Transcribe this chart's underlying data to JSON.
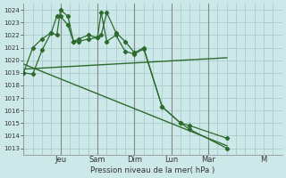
{
  "bg_color": "#cce8e8",
  "grid_color": "#aacccc",
  "line_color": "#2d6a2d",
  "xlabel_text": "Pression niveau de la mer( hPa )",
  "ylim": [
    1012.5,
    1024.5
  ],
  "yticks": [
    1013,
    1014,
    1015,
    1016,
    1017,
    1018,
    1019,
    1020,
    1021,
    1022,
    1023,
    1024
  ],
  "xlim": [
    0.0,
    7.0
  ],
  "day_labels": [
    "Jeu",
    "Sam",
    "Dim",
    "Lun",
    "Mar",
    "M"
  ],
  "day_x": [
    1.0,
    2.0,
    3.0,
    4.0,
    5.0,
    6.5
  ],
  "series1_x": [
    0.0,
    0.25,
    0.5,
    0.75,
    0.9,
    1.0,
    1.2,
    1.35,
    1.5,
    1.75,
    2.0,
    2.1,
    2.25,
    2.5,
    2.75,
    3.0,
    3.25,
    3.75,
    4.25,
    4.5,
    5.5
  ],
  "series1_y": [
    1019.0,
    1018.9,
    1020.8,
    1022.2,
    1023.5,
    1023.5,
    1022.8,
    1021.5,
    1021.7,
    1022.0,
    1021.8,
    1022.0,
    1023.8,
    1022.2,
    1021.5,
    1020.6,
    1021.0,
    1016.3,
    1015.0,
    1014.8,
    1013.8
  ],
  "series2_x": [
    0.0,
    0.25,
    0.5,
    0.75,
    0.9,
    1.0,
    1.2,
    1.35,
    1.5,
    1.75,
    2.0,
    2.1,
    2.25,
    2.5,
    2.75,
    3.0,
    3.25,
    3.75,
    4.25,
    4.5,
    5.5
  ],
  "series2_y": [
    1019.0,
    1021.0,
    1021.7,
    1022.2,
    1022.0,
    1024.0,
    1023.5,
    1021.5,
    1021.5,
    1021.7,
    1021.8,
    1023.8,
    1021.5,
    1022.0,
    1020.7,
    1020.5,
    1020.9,
    1016.3,
    1015.0,
    1014.5,
    1013.0
  ],
  "series3_x": [
    0.0,
    5.5
  ],
  "series3_y": [
    1019.3,
    1020.2
  ],
  "series4_x": [
    0.0,
    5.5
  ],
  "series4_y": [
    1019.7,
    1013.2
  ],
  "marker_size": 2.2,
  "num_vgrid": 28,
  "num_hgrid": 12
}
